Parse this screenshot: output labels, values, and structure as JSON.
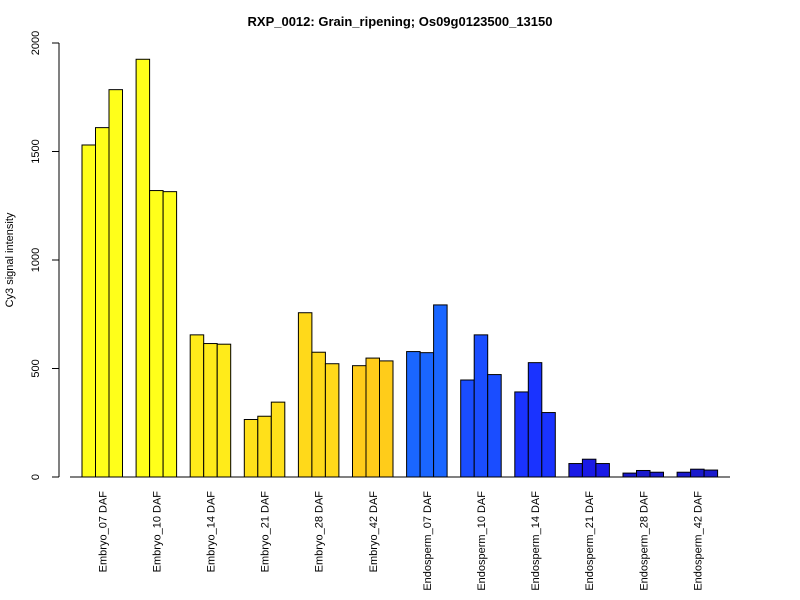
{
  "chart_data": {
    "type": "bar",
    "title": "RXP_0012: Grain_ripening; Os09g0123500_13150",
    "xlabel": "",
    "ylabel": "Cy3 signal intensity",
    "ylim": [
      0,
      2000
    ],
    "yticks": [
      0,
      500,
      1000,
      1500,
      2000
    ],
    "grid": false,
    "legend": "none",
    "groups": [
      {
        "label": "Embryo_07 DAF",
        "color": "#FFFF1A",
        "values": [
          1530,
          1610,
          1785
        ]
      },
      {
        "label": "Embryo_10 DAF",
        "color": "#FFFF1A",
        "values": [
          1925,
          1320,
          1315
        ]
      },
      {
        "label": "Embryo_14 DAF",
        "color": "#FFEB1A",
        "values": [
          655,
          615,
          612
        ]
      },
      {
        "label": "Embryo_21 DAF",
        "color": "#FFE01A",
        "values": [
          265,
          280,
          345
        ]
      },
      {
        "label": "Embryo_28 DAF",
        "color": "#FFD91A",
        "values": [
          757,
          575,
          522
        ]
      },
      {
        "label": "Embryo_42 DAF",
        "color": "#FFCC1A",
        "values": [
          513,
          548,
          535
        ]
      },
      {
        "label": "Endosperm_07 DAF",
        "color": "#1A66FF",
        "values": [
          578,
          573,
          793
        ]
      },
      {
        "label": "Endosperm_10 DAF",
        "color": "#1A4DFF",
        "values": [
          447,
          655,
          472
        ]
      },
      {
        "label": "Endosperm_14 DAF",
        "color": "#1A33FF",
        "values": [
          392,
          527,
          297
        ]
      },
      {
        "label": "Endosperm_21 DAF",
        "color": "#1A1AE6",
        "values": [
          62,
          82,
          62
        ]
      },
      {
        "label": "Endosperm_28 DAF",
        "color": "#1A1ACC",
        "values": [
          18,
          30,
          22
        ]
      },
      {
        "label": "Endosperm_42 DAF",
        "color": "#1A1ACC",
        "values": [
          22,
          36,
          32
        ]
      }
    ]
  }
}
